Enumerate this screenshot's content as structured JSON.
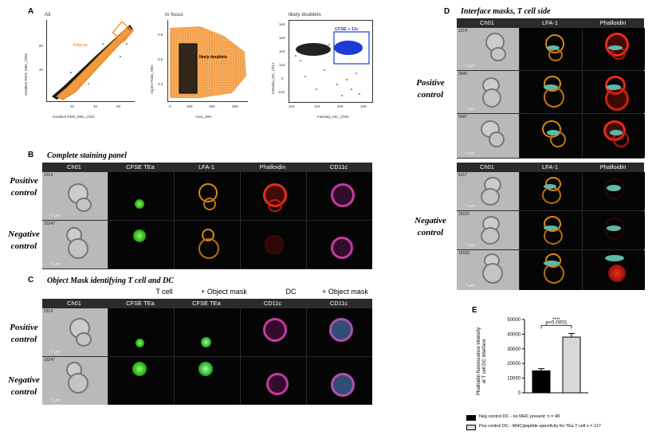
{
  "panels": {
    "A": {
      "letter": "A",
      "plots": [
        {
          "title": "All",
          "xlabel": "Gradient RMS_M01_Ch01",
          "ylabel": "Gradient RMS_M05_Ch05",
          "gate": "Infocus",
          "xticks": [
            "20",
            "40",
            "60"
          ],
          "yticks": [
            "40",
            "60"
          ]
        },
        {
          "title": "In focus",
          "xlabel": "Area_M01",
          "ylabel": "Aspect Ratio_M01",
          "gate": "likely doublets",
          "xticks": [
            "0",
            "100",
            "200",
            "300"
          ],
          "yticks": [
            "0.8",
            "0.6",
            "0.4"
          ]
        },
        {
          "title": "likely doublets",
          "xlabel": "Intensity_MC_Ch02",
          "ylabel": "Intensity_MC_Ch12",
          "gate": "CFSE + 11c",
          "xticks": [
            "1e3",
            "1e4",
            "1e5",
            "1e6"
          ],
          "yticks": [
            "1e6",
            "1e5",
            "1e4",
            "1e3",
            "0",
            "-1e3"
          ]
        }
      ]
    },
    "B": {
      "letter": "B",
      "title": "Complete staining panel",
      "columns": [
        "Ch01",
        "CFSE TEa",
        "LFA-1",
        "Phalloidin",
        "CD11c"
      ],
      "rows": [
        {
          "label_1": "Positive",
          "label_2": "control",
          "id": "2214",
          "scale": "7 µm"
        },
        {
          "label_1": "Negative",
          "label_2": "control",
          "id": "15247",
          "scale": "7 µm"
        }
      ]
    },
    "C": {
      "letter": "C",
      "title": "Object Mask identifying T cell and DC",
      "group_headers": [
        "T cell",
        "+ Object mask",
        "DC",
        "+ Object mask"
      ],
      "columns": [
        "Ch01",
        "CFSE TEa",
        "CFSE TEa",
        "CD11c",
        "CD11c"
      ],
      "rows": [
        {
          "label_1": "Positive",
          "label_2": "control",
          "id": "2214",
          "scale": "7 µm"
        },
        {
          "label_1": "Negative",
          "label_2": "control",
          "id": "15247",
          "scale": "7 µm"
        }
      ]
    },
    "D": {
      "letter": "D",
      "title": "Interface masks, T cell side",
      "columns": [
        "Ch01",
        "LFA-1",
        "Phalloidin"
      ],
      "positive": {
        "label_1": "Positive",
        "label_2": "control",
        "ids": [
          "2214",
          "2846",
          "5497"
        ]
      },
      "negative": {
        "label_1": "Negative",
        "label_2": "control",
        "ids": [
          "6317",
          "15023",
          "15029"
        ]
      },
      "scale": "7 µm"
    },
    "E": {
      "letter": "E",
      "ylabel_1": "Phalloidin fluorescence intensity",
      "ylabel_2": "at T cell:DC interface",
      "significance": "****",
      "pvalue": "p<0.0001",
      "legend": [
        {
          "label": "Neg control DC - no MHC present; n = 48",
          "color": "#000000"
        },
        {
          "label": "Pos control DC - MHC/peptide specificity for TEa T cell n = 117",
          "color": "#d8d8d8"
        }
      ]
    }
  },
  "chart_data": {
    "type": "bar",
    "categories": [
      "Neg control DC",
      "Pos control DC"
    ],
    "values": [
      15000,
      38000
    ],
    "errors": [
      1500,
      2500
    ],
    "colors": [
      "#000000",
      "#d8d8d8"
    ],
    "ylabel": "Phalloidin fluorescence intensity at T cell:DC interface",
    "ylim": [
      0,
      50000
    ],
    "yticks": [
      0,
      10000,
      20000,
      30000,
      40000,
      50000
    ],
    "ytick_labels": [
      "0",
      "10000",
      "20000",
      "30000",
      "40000",
      "50000"
    ]
  }
}
